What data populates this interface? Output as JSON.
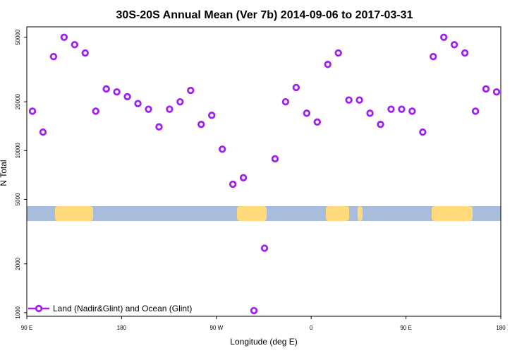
{
  "chart_data": {
    "type": "scatter",
    "title": "30S-20S Annual Mean (Ver 7b)   2014-09-06 to 2017-03-31",
    "xlabel": "Longitude (deg E)",
    "ylabel": "N Total",
    "y_scale": "log",
    "ylim": [
      950,
      58000
    ],
    "y_ticks": [
      {
        "value": 1000,
        "label": "1000"
      },
      {
        "value": 2000,
        "label": "2000"
      },
      {
        "value": 5000,
        "label": "5000"
      },
      {
        "value": 10000,
        "label": "10000"
      },
      {
        "value": 20000,
        "label": "20000"
      },
      {
        "value": 50000,
        "label": "50000"
      }
    ],
    "x_ticks": [
      {
        "label": "90 E"
      },
      {
        "label": "180"
      },
      {
        "label": "90 W"
      },
      {
        "label": "0"
      },
      {
        "label": "90 E"
      },
      {
        "label": "180"
      }
    ],
    "legend": {
      "label": "Land (Nadir&Glint) and Ocean (Glint)",
      "position": "bottom-left"
    },
    "marker_color": "#a020f0",
    "land_color": "#ffd97a",
    "ocean_color": "#a8bcdc",
    "series": [
      {
        "x": [
          1,
          2,
          3,
          4,
          5,
          6,
          7,
          8,
          9,
          10,
          11,
          12,
          13,
          14,
          15,
          16,
          17,
          18,
          19,
          20,
          21,
          22,
          23,
          24,
          25,
          26,
          27,
          28,
          29,
          30,
          31,
          32,
          33,
          34,
          35,
          36,
          37,
          38,
          39,
          40,
          41,
          42,
          43,
          44,
          45
        ],
        "values": [
          17500,
          13000,
          38000,
          50000,
          45000,
          40000,
          17500,
          24000,
          23000,
          21500,
          19500,
          18000,
          14000,
          18000,
          20000,
          23500,
          14500,
          16500,
          10200,
          6200,
          6800,
          1030,
          2500,
          8900,
          20000,
          24500,
          17000,
          15000,
          34000,
          40000,
          20500,
          20500,
          17000,
          14500,
          18000,
          18000,
          17500,
          13000,
          38000,
          50000,
          45000,
          40000,
          17500,
          24000,
          23000
        ]
      }
    ]
  }
}
